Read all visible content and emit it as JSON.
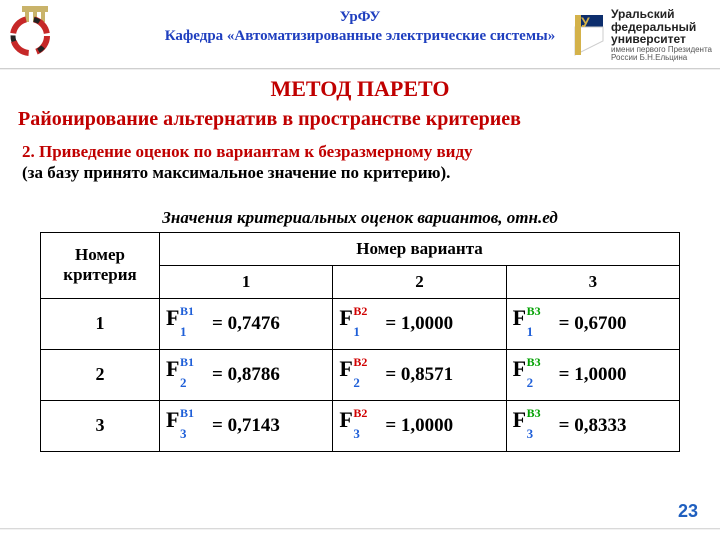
{
  "header": {
    "line1": "УрФУ",
    "line2": "Кафедра «Автоматизированные электрические системы»",
    "right_logo": {
      "l1": "Уральский",
      "l2": "федеральный",
      "l3": "университет",
      "sub1": "имени первого Президента",
      "sub2": "России Б.Н.Ельцина"
    }
  },
  "titles": {
    "main": "МЕТОД  ПАРЕТО",
    "sub": "Районирование альтернатив в пространстве критериев"
  },
  "step": {
    "red": "2. Приведение оценок по вариантам к безразмерному виду",
    "black": "(за базу принято максимальное значение по критерию)."
  },
  "table": {
    "caption": "Значения критериальных оценок вариантов, отн.ед",
    "col_header_left": "Номер критерия",
    "col_header_right": "Номер   варианта",
    "variant_labels": [
      "1",
      "2",
      "3"
    ],
    "criteria_labels": [
      "1",
      "2",
      "3"
    ],
    "colors": {
      "B1": "#1f5fd8",
      "B2": "#d00000",
      "B3": "#00a000",
      "sub": "#1f5fd8"
    },
    "cells": [
      [
        {
          "sup": "B1",
          "sub": "1",
          "val": "=  0,7476"
        },
        {
          "sup": "B2",
          "sub": "1",
          "val": "=   1,0000"
        },
        {
          "sup": "B3",
          "sub": "1",
          "val": " =   0,6700"
        }
      ],
      [
        {
          "sup": "B1",
          "sub": "2",
          "val": " =   0,8786"
        },
        {
          "sup": "B2",
          "sub": "2",
          "val": " =  0,8571"
        },
        {
          "sup": "B3",
          "sub": "2",
          "val": " = 1,0000"
        }
      ],
      [
        {
          "sup": "B1",
          "sub": "3",
          "val": "=   0,7143"
        },
        {
          "sup": "B2",
          "sub": "3",
          "val": " =  1,0000"
        },
        {
          "sup": "B3",
          "sub": "3",
          "val": " =  0,8333"
        }
      ]
    ]
  },
  "page_number": "23"
}
